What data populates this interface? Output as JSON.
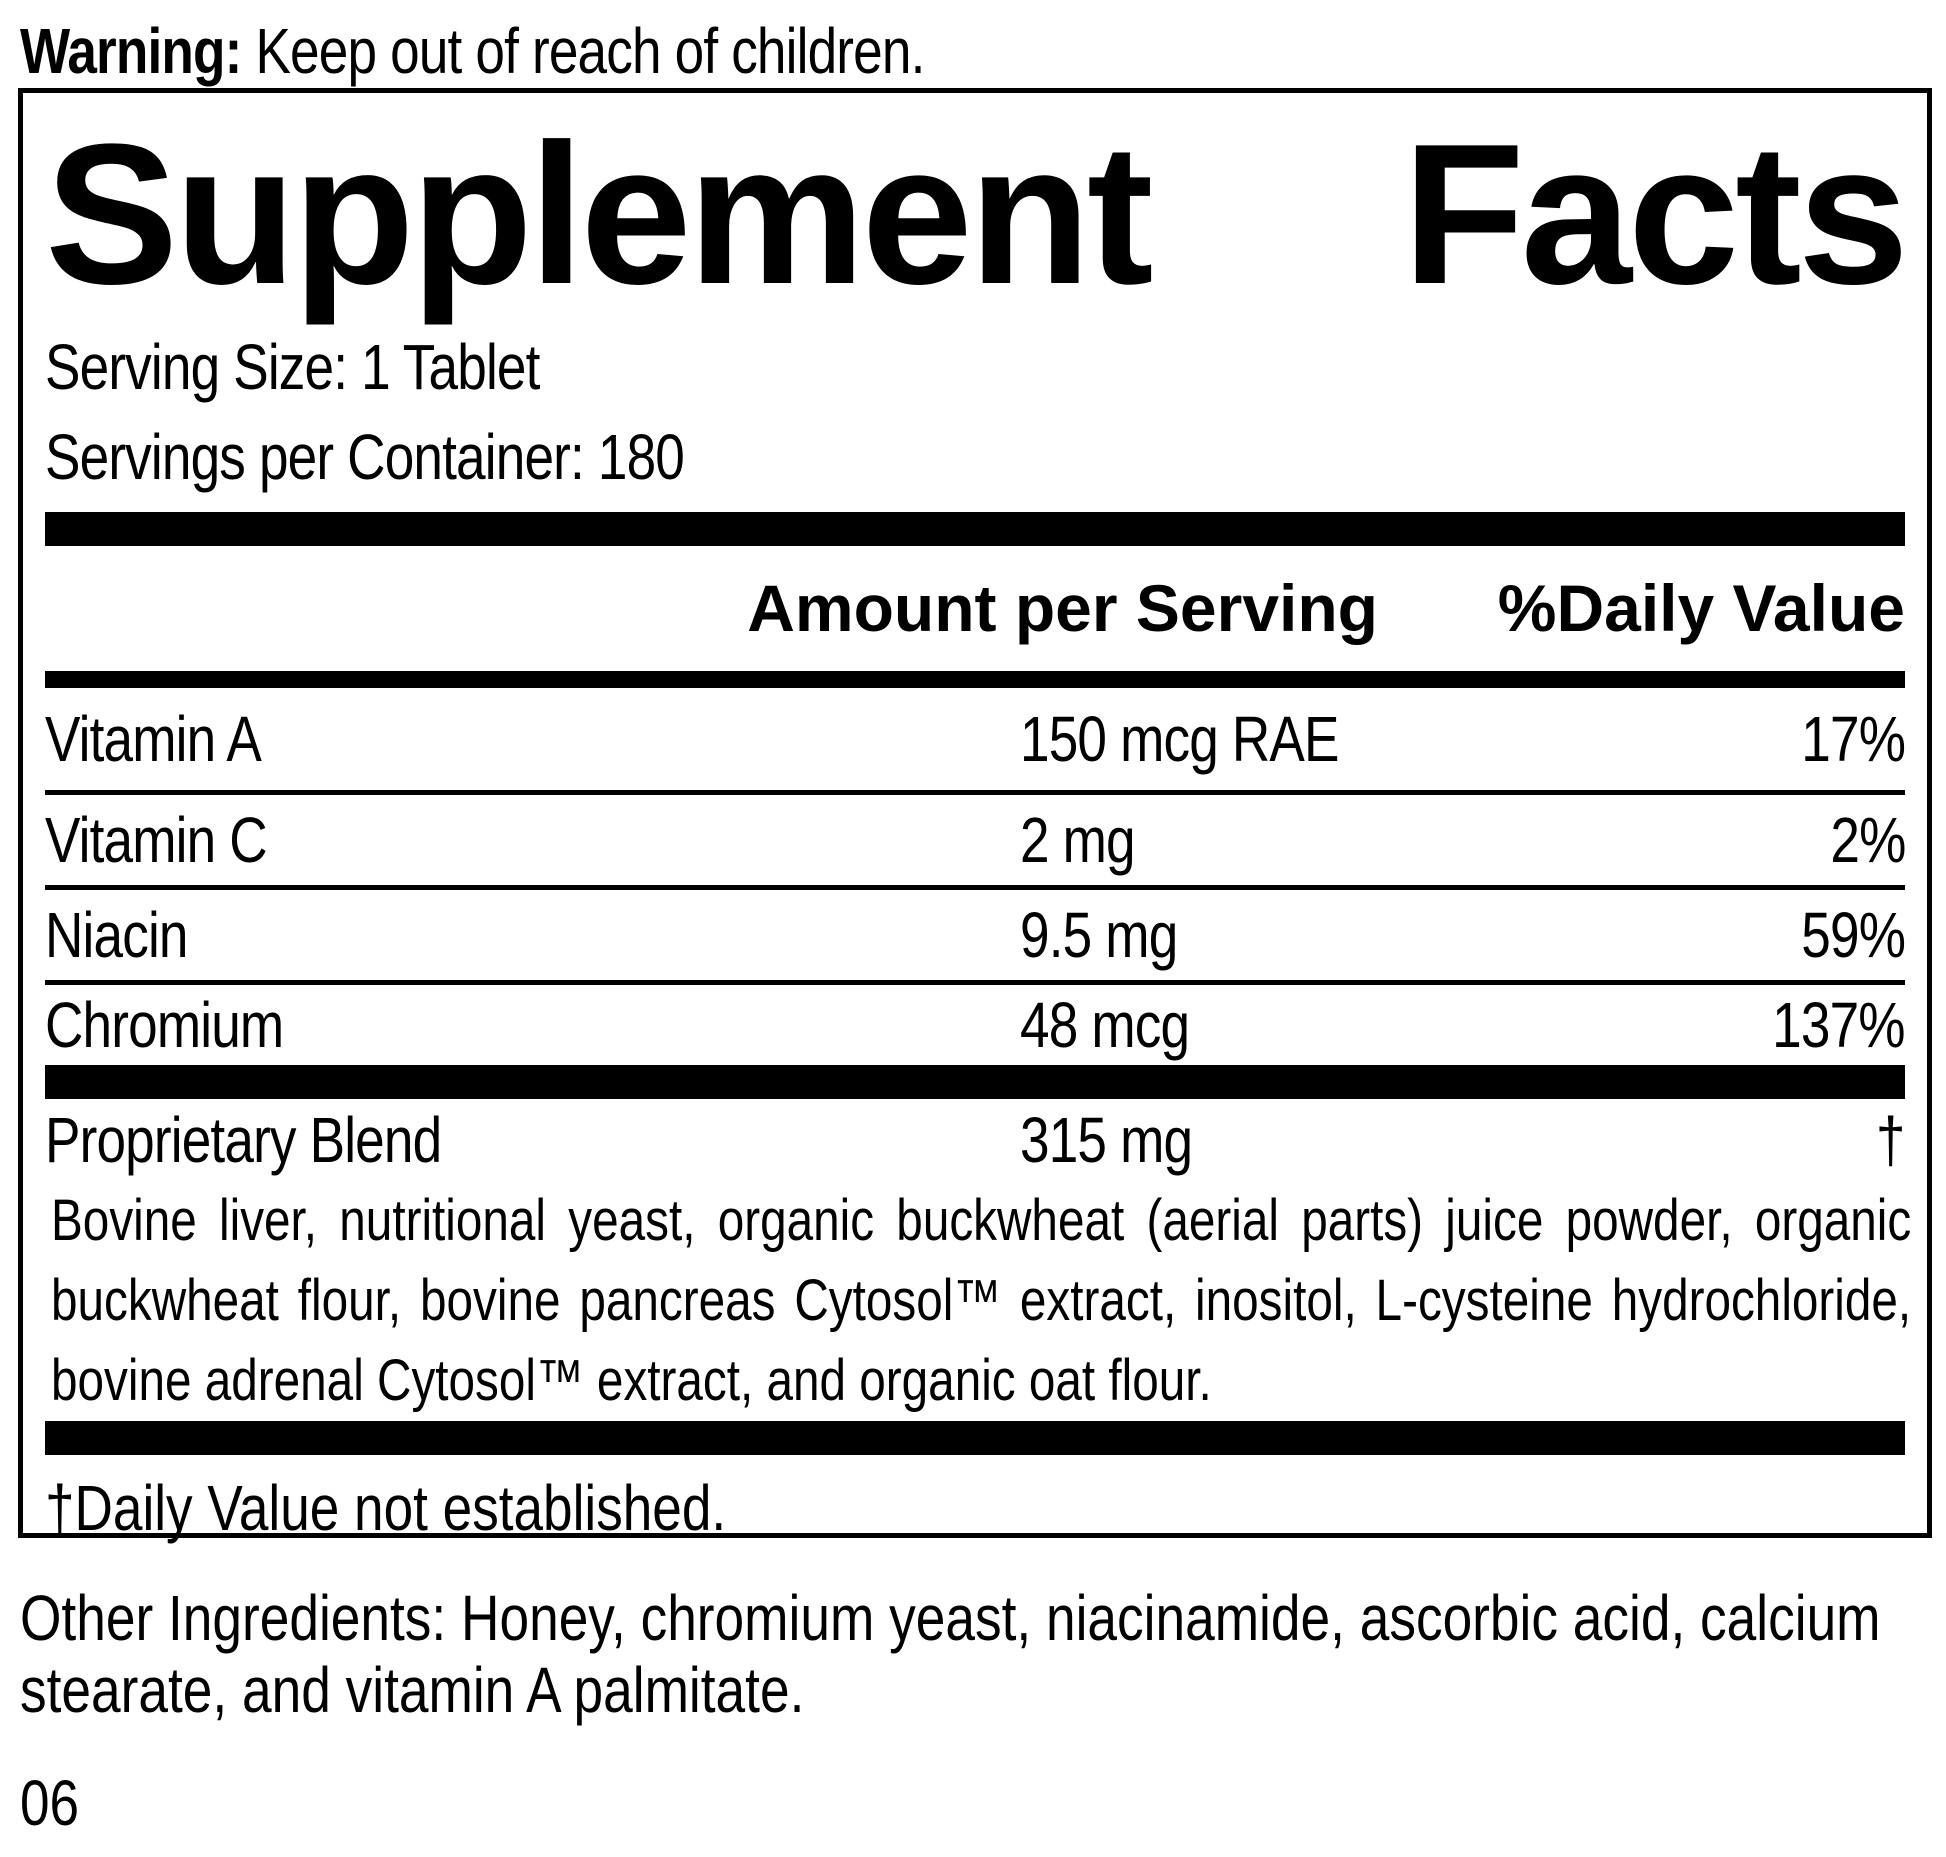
{
  "warning": {
    "label": "Warning:",
    "text": " Keep out of reach of children."
  },
  "panel": {
    "title": {
      "word1": "Supplement",
      "word2": "Facts"
    },
    "serving_size": "Serving Size: 1 Tablet",
    "servings_per_container": "Servings per Container: 180",
    "columns": {
      "amount_header": "Amount per Serving",
      "daily_value_header": "%Daily Value"
    },
    "nutrients": [
      {
        "name": "Vitamin A",
        "amount": "150 mcg RAE",
        "dv": "17%"
      },
      {
        "name": "Vitamin C",
        "amount": "2 mg",
        "dv": "2%"
      },
      {
        "name": "Niacin",
        "amount": "9.5 mg",
        "dv": "59%"
      },
      {
        "name": "Chromium",
        "amount": "48 mcg",
        "dv": "137%"
      }
    ],
    "blend": {
      "name": "Proprietary Blend",
      "amount": "315 mg",
      "dv": "†",
      "description": "Bovine liver, nutritional yeast, organic buckwheat (aerial parts) juice powder, organic buckwheat flour, bovine pancreas Cytosol™ extract, inositol, L-cysteine hydrochloride, bovine adrenal Cytosol™ extract, and organic oat flour."
    },
    "footnote": "†Daily Value not established."
  },
  "other_ingredients": "Other Ingredients: Honey, chromium yeast, niacinamide, ascorbic acid, calcium stearate, and vitamin A palmitate.",
  "code": "06"
}
